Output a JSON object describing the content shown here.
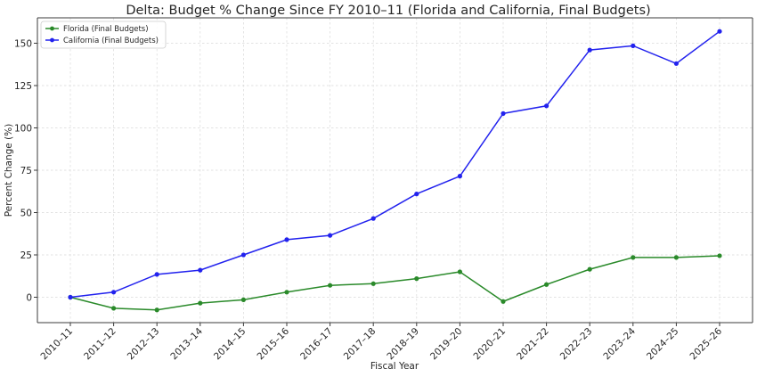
{
  "chart_data": {
    "type": "line",
    "title": "Delta: Budget % Change Since FY 2010–11 (Florida and California, Final Budgets)",
    "xlabel": "Fiscal Year",
    "ylabel": "Percent Change (%)",
    "categories": [
      "2010–11",
      "2011–12",
      "2012–13",
      "2013–14",
      "2014–15",
      "2015–16",
      "2016–17",
      "2017–18",
      "2018–19",
      "2019–20",
      "2020–21",
      "2021–22",
      "2022–23",
      "2023–24",
      "2024–25",
      "2025–26"
    ],
    "yticks": [
      0,
      25,
      50,
      75,
      100,
      125,
      150
    ],
    "ylim": [
      -15,
      165
    ],
    "grid": true,
    "legend_position": "top-left",
    "series": [
      {
        "name": "Florida (Final Budgets)",
        "color": "#2a8a2a",
        "values": [
          0,
          -6.5,
          -7.5,
          -3.5,
          -1.5,
          3,
          7,
          8,
          11,
          15,
          -2.5,
          7.5,
          16.5,
          23.5,
          23.5,
          24.5
        ]
      },
      {
        "name": "California (Final Budgets)",
        "color": "#2222ee",
        "values": [
          0,
          3,
          13.5,
          16,
          25,
          34,
          36.5,
          46.5,
          61,
          71.5,
          108.5,
          113,
          146,
          148.5,
          138,
          157
        ]
      }
    ]
  }
}
